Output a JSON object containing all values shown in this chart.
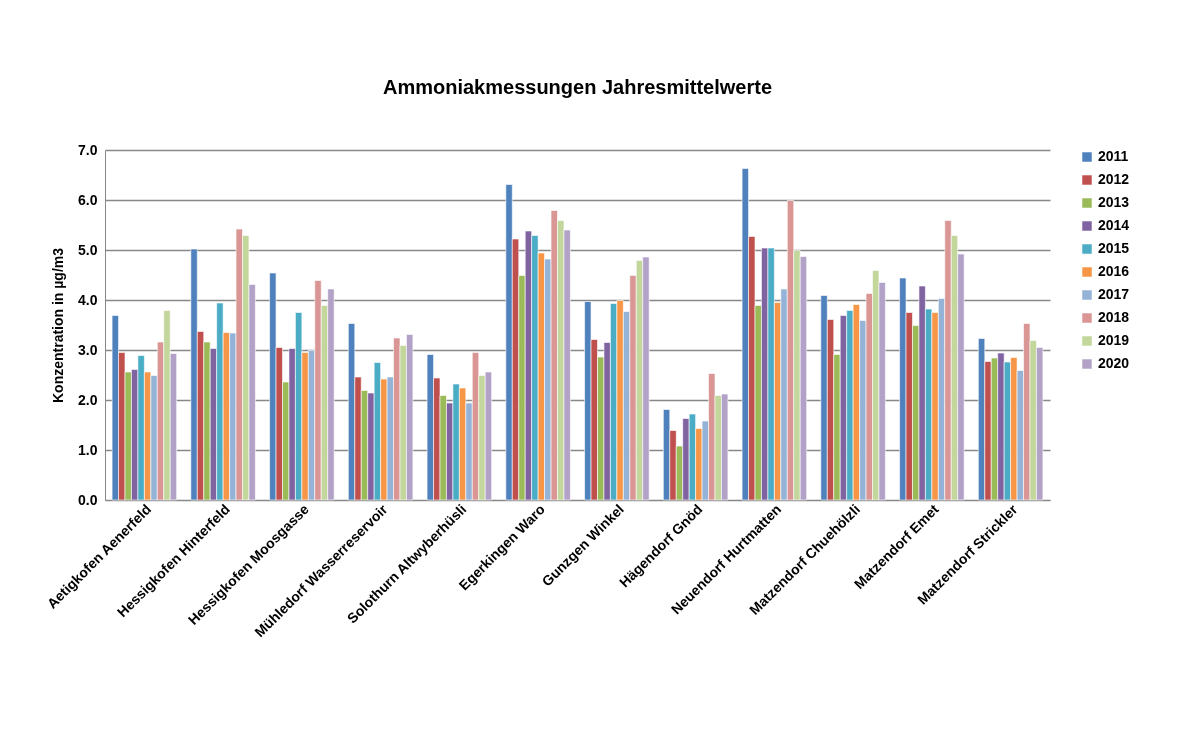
{
  "chart_data": {
    "type": "bar",
    "title": "Ammoniakmessungen Jahresmittelwerte",
    "ylabel": "Konzentration in µg/m3",
    "categories": [
      "Aetigkofen Aenerfeld",
      "Hessigkofen Hinterfeld",
      "Hessigkofen Moosgasse",
      "Mühledorf Wasserreservoir",
      "Solothurn Altwyberhüsli",
      "Egerkingen Waro",
      "Gunzgen Winkel",
      "Hägendorf Gnöd",
      "Neuendorf Hurtmatten",
      "Matzendorf Chuehölzli",
      "Matzendorf Emet",
      "Matzendorf Strickler"
    ],
    "series": [
      {
        "name": "2011",
        "color": "#4f81bd",
        "values": [
          3.69,
          5.02,
          4.54,
          3.53,
          2.91,
          6.31,
          3.97,
          1.81,
          6.63,
          4.09,
          4.44,
          3.23
        ]
      },
      {
        "name": "2012",
        "color": "#c0504d",
        "values": [
          2.95,
          3.37,
          3.05,
          2.46,
          2.44,
          5.22,
          3.21,
          1.39,
          5.27,
          3.61,
          3.75,
          2.77
        ]
      },
      {
        "name": "2013",
        "color": "#9bbb59",
        "values": [
          2.56,
          3.16,
          2.36,
          2.19,
          2.09,
          4.49,
          2.86,
          1.08,
          3.89,
          2.91,
          3.49,
          2.84
        ]
      },
      {
        "name": "2014",
        "color": "#8064a2",
        "values": [
          2.61,
          3.03,
          3.03,
          2.14,
          1.94,
          5.38,
          3.15,
          1.63,
          5.04,
          3.69,
          4.28,
          2.94
        ]
      },
      {
        "name": "2015",
        "color": "#4bacc6",
        "values": [
          2.89,
          3.94,
          3.75,
          2.75,
          2.32,
          5.29,
          3.93,
          1.72,
          5.04,
          3.79,
          3.82,
          2.76
        ]
      },
      {
        "name": "2016",
        "color": "#f79646",
        "values": [
          2.56,
          3.35,
          2.95,
          2.42,
          2.24,
          4.94,
          3.99,
          1.43,
          3.95,
          3.91,
          3.75,
          2.85
        ]
      },
      {
        "name": "2017",
        "color": "#95b3d7",
        "values": [
          2.49,
          3.34,
          2.99,
          2.46,
          1.94,
          4.82,
          3.77,
          1.58,
          4.22,
          3.59,
          4.03,
          2.59
        ]
      },
      {
        "name": "2018",
        "color": "#d99694",
        "values": [
          3.16,
          5.42,
          4.39,
          3.24,
          2.95,
          5.79,
          4.49,
          2.53,
          5.99,
          4.13,
          5.59,
          3.53
        ]
      },
      {
        "name": "2019",
        "color": "#c3d69b",
        "values": [
          3.79,
          5.29,
          3.89,
          3.09,
          2.49,
          5.59,
          4.79,
          2.09,
          4.99,
          4.59,
          5.29,
          3.19
        ]
      },
      {
        "name": "2020",
        "color": "#b3a2c7",
        "values": [
          2.93,
          4.31,
          4.22,
          3.31,
          2.56,
          5.4,
          4.86,
          2.12,
          4.87,
          4.35,
          4.92,
          3.05
        ]
      }
    ],
    "ylim": [
      0,
      7
    ],
    "yticks": [
      {
        "value": 0,
        "label": "0.0"
      },
      {
        "value": 1,
        "label": "1.0"
      },
      {
        "value": 2,
        "label": "2.0"
      },
      {
        "value": 3,
        "label": "3.0"
      },
      {
        "value": 4,
        "label": "4.0"
      },
      {
        "value": 5,
        "label": "5.0"
      },
      {
        "value": 6,
        "label": "6.0"
      },
      {
        "value": 7,
        "label": "7.0"
      }
    ],
    "grid": "y",
    "legend": "right"
  }
}
